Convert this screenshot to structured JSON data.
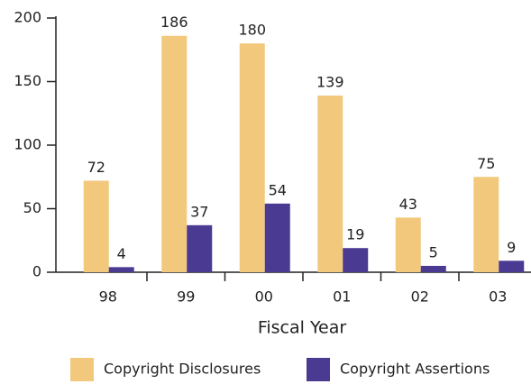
{
  "chart_data": {
    "type": "bar",
    "categories": [
      "98",
      "99",
      "00",
      "01",
      "02",
      "03"
    ],
    "series": [
      {
        "name": "Copyright Disclosures",
        "color": "#f2c97c",
        "values": [
          72,
          186,
          180,
          139,
          43,
          75
        ]
      },
      {
        "name": "Copyright Assertions",
        "color": "#4a3a92",
        "values": [
          4,
          37,
          54,
          19,
          5,
          9
        ]
      }
    ],
    "x_label": "Fiscal Year",
    "ylim": [
      0,
      200
    ],
    "yticks": [
      0,
      50,
      100,
      150,
      200
    ],
    "legend": "bottom"
  }
}
